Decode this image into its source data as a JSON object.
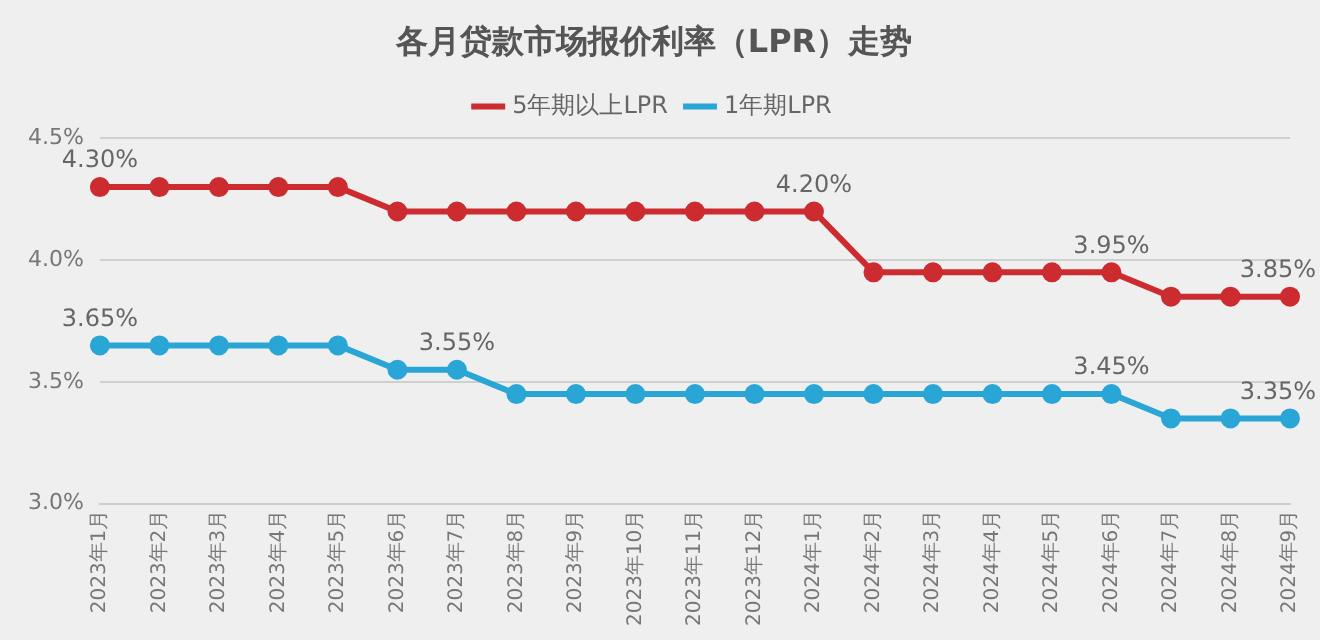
{
  "chart_data": {
    "type": "line",
    "title": "各月贷款市场报价利率（LPR）走势",
    "categories": [
      "2023年1月",
      "2023年2月",
      "2023年3月",
      "2023年4月",
      "2023年5月",
      "2023年6月",
      "2023年7月",
      "2023年8月",
      "2023年9月",
      "2023年10月",
      "2023年11月",
      "2023年12月",
      "2024年1月",
      "2024年2月",
      "2024年3月",
      "2024年4月",
      "2024年5月",
      "2024年6月",
      "2024年7月",
      "2024年8月",
      "2024年9月"
    ],
    "series": [
      {
        "name": "5年期以上LPR",
        "color": "#cc2b30",
        "values": [
          4.3,
          4.3,
          4.3,
          4.3,
          4.3,
          4.2,
          4.2,
          4.2,
          4.2,
          4.2,
          4.2,
          4.2,
          4.2,
          3.95,
          3.95,
          3.95,
          3.95,
          3.95,
          3.85,
          3.85,
          3.85
        ],
        "value_labels": [
          "4.30%",
          null,
          null,
          null,
          null,
          null,
          null,
          null,
          null,
          null,
          null,
          null,
          "4.20%",
          null,
          null,
          null,
          null,
          "3.95%",
          null,
          null,
          "3.85%"
        ]
      },
      {
        "name": "1年期LPR",
        "color": "#2aa6d6",
        "values": [
          3.65,
          3.65,
          3.65,
          3.65,
          3.65,
          3.55,
          3.55,
          3.45,
          3.45,
          3.45,
          3.45,
          3.45,
          3.45,
          3.45,
          3.45,
          3.45,
          3.45,
          3.45,
          3.35,
          3.35,
          3.35
        ],
        "value_labels": [
          "3.65%",
          null,
          null,
          null,
          null,
          null,
          "3.55%",
          null,
          null,
          null,
          null,
          null,
          null,
          null,
          null,
          null,
          null,
          "3.45%",
          null,
          null,
          "3.35%"
        ]
      }
    ],
    "ylim": [
      3.0,
      4.5
    ],
    "yticks": [
      {
        "value": 3.0,
        "label": "3.0%"
      },
      {
        "value": 3.5,
        "label": "3.5%"
      },
      {
        "value": 4.0,
        "label": "4.0%"
      },
      {
        "value": 4.5,
        "label": "4.5%"
      }
    ],
    "grid": "y",
    "legend": "top",
    "marker": "circle",
    "line_style": "solid"
  }
}
